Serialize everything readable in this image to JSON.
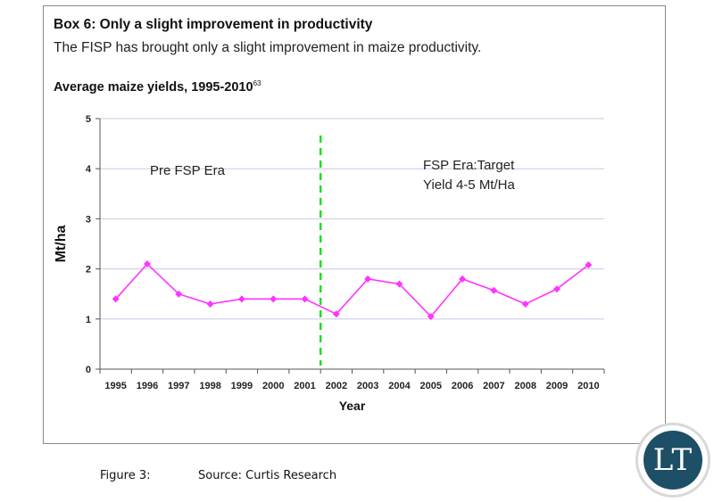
{
  "box": {
    "title": "Box 6: Only a slight improvement in productivity",
    "subtitle": "The FISP has brought only a slight improvement in maize productivity.",
    "chart_title": "Average maize yields, 1995-2010",
    "chart_title_footnote": "63"
  },
  "chart_data": {
    "type": "line",
    "title": "Average maize yields, 1995-2010",
    "xlabel": "Year",
    "ylabel": "Mt/ha",
    "ylim": [
      0,
      5
    ],
    "yticks": [
      0,
      1,
      2,
      3,
      4,
      5
    ],
    "grid": true,
    "categories": [
      "1995",
      "1996",
      "1997",
      "1998",
      "1999",
      "2000",
      "2001",
      "2002",
      "2003",
      "2004",
      "2005",
      "2006",
      "2007",
      "2008",
      "2009",
      "2010"
    ],
    "series": [
      {
        "values": [
          1.4,
          2.1,
          1.5,
          1.3,
          1.4,
          1.4,
          1.4,
          1.1,
          1.8,
          1.7,
          1.05,
          1.8,
          1.57,
          1.3,
          1.6,
          2.08
        ],
        "color": "#ff33ff"
      }
    ],
    "divider": {
      "after_category": "2001",
      "color": "#22dd22",
      "style": "dashed"
    },
    "annotations": [
      {
        "text": "Pre FSP Era"
      },
      {
        "text": "FSP Era:Target"
      },
      {
        "text": "Yield 4-5 Mt/Ha"
      }
    ]
  },
  "caption": {
    "figure": "Figure 3:",
    "source": "Source: Curtis Research"
  },
  "logo": {
    "text": "LT"
  }
}
